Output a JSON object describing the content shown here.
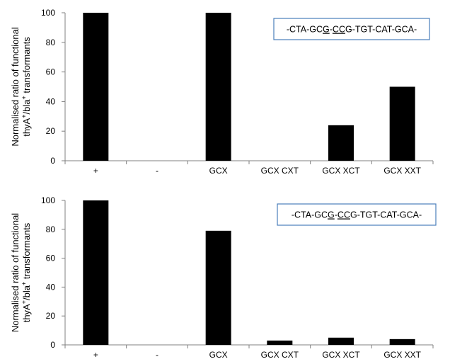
{
  "chart_data": [
    {
      "type": "bar",
      "categories": [
        "+",
        "-",
        "GCX",
        "GCX CXT",
        "GCX XCT",
        "GCX XXT"
      ],
      "values": [
        100,
        0,
        100,
        0,
        24,
        50
      ],
      "ylim": [
        0,
        100
      ],
      "yticks": [
        "0",
        "20",
        "40",
        "60",
        "80",
        "100"
      ],
      "ylabel_line1": "Normalised ratio of functional",
      "ylabel_line2": {
        "a": "thyA",
        "sup1": "+",
        "b": "/bla",
        "sup2": "+",
        "c": " transformants"
      },
      "annotation": {
        "pre": "-CTA-GC",
        "u1": "G",
        "mid": "-",
        "u2": "CC",
        "post": "G-TGT-CAT-GCA-"
      },
      "bar_color": "#000000",
      "annotation_border_color": "#4a7ebb",
      "grid": false
    },
    {
      "type": "bar",
      "categories": [
        "+",
        "-",
        "GCX",
        "GCX CXT",
        "GCX XCT",
        "GCX XXT"
      ],
      "values": [
        100,
        0,
        79,
        3,
        5,
        4
      ],
      "ylim": [
        0,
        100
      ],
      "yticks": [
        "0",
        "20",
        "40",
        "60",
        "80",
        "100"
      ],
      "ylabel_line1": "Normalised ratio of functional",
      "ylabel_line2": {
        "a": "thyA",
        "sup1": "+",
        "b": "/bla",
        "sup2": "+",
        "c": " transformants"
      },
      "annotation": {
        "pre": "-CTA-GC",
        "u1": "G",
        "mid": "-",
        "u2": "CC",
        "post": "G-TGT-CAT-GCA-"
      },
      "bar_color": "#000000",
      "annotation_border_color": "#4a7ebb",
      "grid": false
    }
  ]
}
